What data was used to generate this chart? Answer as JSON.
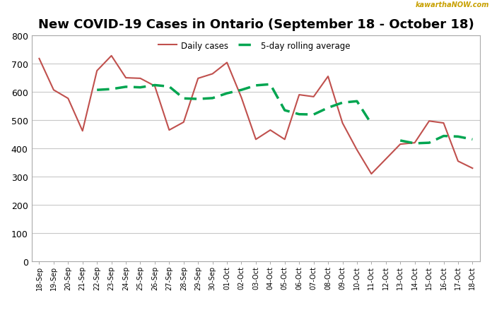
{
  "title": "New COVID-19 Cases in Ontario (September 18 - October 18)",
  "watermark": "kawarthaNOW.com",
  "dates": [
    "18-Sep",
    "19-Sep",
    "20-Sep",
    "21-Sep",
    "22-Sep",
    "23-Sep",
    "24-Sep",
    "25-Sep",
    "26-Sep",
    "27-Sep",
    "28-Sep",
    "29-Sep",
    "30-Sep",
    "01-Oct",
    "02-Oct",
    "03-Oct",
    "04-Oct",
    "05-Oct",
    "06-Oct",
    "07-Oct",
    "08-Oct",
    "09-Oct",
    "10-Oct",
    "11-Oct",
    "12-Oct",
    "13-Oct",
    "14-Oct",
    "15-Oct",
    "16-Oct",
    "17-Oct",
    "18-Oct"
  ],
  "daily_cases": [
    718,
    607,
    577,
    462,
    675,
    728,
    650,
    648,
    621,
    465,
    493,
    648,
    664,
    704,
    580,
    432,
    465,
    432,
    590,
    583,
    655,
    490,
    395,
    310,
    null,
    415,
    420,
    497,
    490,
    355,
    330
  ],
  "rolling_avg": [
    null,
    null,
    null,
    null,
    607,
    610,
    618,
    616,
    624,
    619,
    577,
    575,
    578,
    595,
    607,
    623,
    627,
    535,
    521,
    520,
    544,
    562,
    567,
    487,
    null,
    428,
    418,
    420,
    444,
    442,
    432
  ],
  "daily_color": "#c0504d",
  "rolling_color": "#00a550",
  "ylim": [
    0,
    800
  ],
  "yticks": [
    0,
    100,
    200,
    300,
    400,
    500,
    600,
    700,
    800
  ],
  "bg_color": "#ffffff",
  "grid_color": "#c8c8c8",
  "legend_daily": "Daily cases",
  "legend_rolling": "5-day rolling average",
  "watermark_color": "#c8a000"
}
